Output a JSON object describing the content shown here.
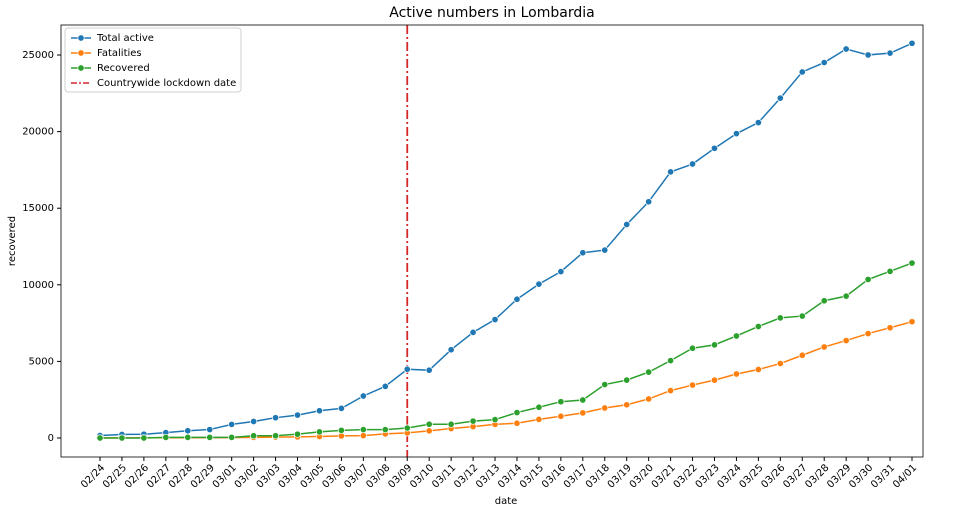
{
  "chart_data": {
    "type": "line",
    "title": "Active numbers in Lombardia",
    "xlabel": "date",
    "ylabel": "recovered",
    "categories": [
      "02/24",
      "02/25",
      "02/26",
      "02/27",
      "02/28",
      "02/29",
      "03/01",
      "03/02",
      "03/03",
      "03/04",
      "03/05",
      "03/06",
      "03/07",
      "03/08",
      "03/09",
      "03/10",
      "03/11",
      "03/12",
      "03/13",
      "03/14",
      "03/15",
      "03/16",
      "03/17",
      "03/18",
      "03/19",
      "03/20",
      "03/21",
      "03/22",
      "03/23",
      "03/24",
      "03/25",
      "03/26",
      "03/27",
      "03/28",
      "03/29",
      "03/30",
      "03/31",
      "04/01"
    ],
    "series": [
      {
        "name": "Total active",
        "color": "#1f77b4",
        "values": [
          166,
          231,
          249,
          349,
          474,
          552,
          887,
          1077,
          1326,
          1497,
          1777,
          1935,
          2742,
          3372,
          4490,
          4427,
          5763,
          6896,
          7732,
          9059,
          10043,
          10861,
          12095,
          12266,
          13938,
          15420,
          17370,
          17885,
          18910,
          19868,
          20591,
          22189,
          23895,
          24509,
          25392,
          25006,
          25124,
          25765
        ]
      },
      {
        "name": "Fatalities",
        "color": "#ff7f0e",
        "values": [
          6,
          9,
          14,
          17,
          17,
          23,
          24,
          38,
          55,
          73,
          98,
          135,
          154,
          267,
          333,
          468,
          617,
          744,
          890,
          966,
          1218,
          1420,
          1640,
          1959,
          2168,
          2549,
          3095,
          3456,
          3776,
          4178,
          4474,
          4861,
          5402,
          5944,
          6360,
          6818,
          7199,
          7593
        ]
      },
      {
        "name": "Recovered",
        "color": "#2ca02c",
        "values": [
          0,
          0,
          0,
          40,
          40,
          40,
          40,
          150,
          150,
          250,
          400,
          500,
          550,
          550,
          650,
          900,
          900,
          1100,
          1200,
          1660,
          2010,
          2370,
          2480,
          3490,
          3780,
          4300,
          5050,
          5860,
          6080,
          6660,
          7280,
          7840,
          7960,
          8960,
          9260,
          10350,
          10880,
          11420
        ]
      }
    ],
    "vline": {
      "name": "Countrywide lockdown date",
      "x": "03/09",
      "color": "#d62728"
    },
    "ylim": [
      -1240,
      26960
    ],
    "yticks": [
      0,
      5000,
      10000,
      15000,
      20000,
      25000
    ],
    "legend": "upper left"
  }
}
